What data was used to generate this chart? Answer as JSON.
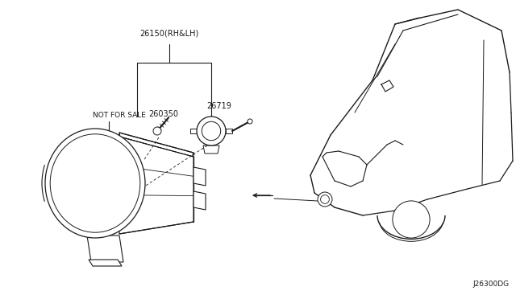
{
  "background_color": "#ffffff",
  "diagram_id": "J26300DG",
  "part_numbers": {
    "main": "26150(RH&LH)",
    "screw": "260350",
    "bulb": "26719",
    "note": "NOT FOR SALE"
  },
  "line_color": "#1a1a1a",
  "text_color": "#1a1a1a",
  "figsize": [
    6.4,
    3.72
  ],
  "dpi": 100
}
